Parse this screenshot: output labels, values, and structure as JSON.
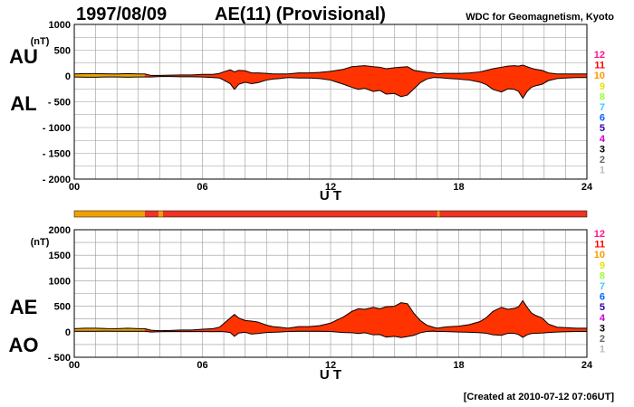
{
  "header": {
    "date": "1997/08/09",
    "title": "AE(11) (Provisional)",
    "source": "WDC for Geomagnetism, Kyoto"
  },
  "footer": {
    "created": "[Created at 2010-07-12 07:06UT]"
  },
  "colors": {
    "fill": "#ff3300",
    "early_fill": "#f0a000",
    "bar_main": "#ee3322",
    "bar_early": "#f0a000",
    "grid": "#999999"
  },
  "station_legend": [
    {
      "label": "12",
      "color": "#ff1493"
    },
    {
      "label": "11",
      "color": "#ff0000"
    },
    {
      "label": "10",
      "color": "#ff9900"
    },
    {
      "label": "9",
      "color": "#e6e600"
    },
    {
      "label": "8",
      "color": "#99ff33"
    },
    {
      "label": "7",
      "color": "#33ccff"
    },
    {
      "label": "6",
      "color": "#0066ff"
    },
    {
      "label": "5",
      "color": "#330099"
    },
    {
      "label": "4",
      "color": "#cc00cc"
    },
    {
      "label": "3",
      "color": "#000000"
    },
    {
      "label": "2",
      "color": "#666666"
    },
    {
      "label": "1",
      "color": "#bbbbbb"
    }
  ],
  "station_bar": {
    "segments": [
      {
        "start": 0,
        "end": 3.3,
        "stations": 10
      },
      {
        "start": 3.3,
        "end": 3.95,
        "stations": 11
      },
      {
        "start": 3.95,
        "end": 4.15,
        "stations": 10
      },
      {
        "start": 4.15,
        "end": 17.0,
        "stations": 11
      },
      {
        "start": 17.0,
        "end": 17.1,
        "stations": 10
      },
      {
        "start": 17.1,
        "end": 24,
        "stations": 11
      }
    ]
  },
  "chart_data": [
    {
      "type": "area",
      "name": "AU/AL",
      "series_labels": [
        "AU",
        "AL"
      ],
      "unit": "(nT)",
      "xlabel": "U T",
      "xlim": [
        0,
        24
      ],
      "ylim": [
        -2000,
        1000
      ],
      "x_ticks": [
        "00",
        "06",
        "12",
        "18",
        "24"
      ],
      "y_ticks": [
        {
          "value": 1000,
          "label": "1000"
        },
        {
          "value": 500,
          "label": "500"
        },
        {
          "value": 0,
          "label": "0"
        },
        {
          "value": -500,
          "label": "- 500"
        },
        {
          "value": -1000,
          "label": "- 1000"
        },
        {
          "value": -1500,
          "label": "- 1500"
        },
        {
          "value": -2000,
          "label": "- 2000"
        }
      ],
      "grid": true,
      "x": [
        0,
        0.5,
        1,
        1.5,
        2,
        2.5,
        3,
        3.3,
        3.6,
        4,
        4.5,
        5,
        5.5,
        6,
        6.5,
        6.8,
        7,
        7.3,
        7.5,
        7.7,
        8,
        8.3,
        8.6,
        9,
        9.3,
        9.6,
        10,
        10.5,
        11,
        11.5,
        12,
        12.3,
        12.6,
        13,
        13.3,
        13.6,
        14,
        14.3,
        14.6,
        15,
        15.3,
        15.6,
        15.9,
        16.2,
        16.5,
        16.8,
        17,
        17.3,
        17.6,
        18,
        18.5,
        19,
        19.3,
        19.6,
        20,
        20.3,
        20.6,
        20.8,
        21,
        21.2,
        21.4,
        21.6,
        21.9,
        22.2,
        22.6,
        23,
        23.5,
        24
      ],
      "series": [
        {
          "name": "AU",
          "values": [
            40,
            45,
            45,
            42,
            40,
            45,
            40,
            40,
            10,
            10,
            15,
            20,
            20,
            30,
            30,
            50,
            80,
            120,
            80,
            110,
            100,
            60,
            60,
            50,
            40,
            40,
            40,
            60,
            60,
            70,
            90,
            110,
            130,
            180,
            190,
            200,
            180,
            170,
            140,
            160,
            170,
            180,
            110,
            90,
            70,
            60,
            40,
            50,
            50,
            50,
            60,
            80,
            110,
            140,
            170,
            190,
            200,
            190,
            210,
            180,
            150,
            130,
            110,
            60,
            40,
            40,
            40,
            40
          ]
        },
        {
          "name": "AL",
          "values": [
            -20,
            -25,
            -25,
            -20,
            -20,
            -25,
            -20,
            -20,
            -20,
            -10,
            -10,
            -15,
            -15,
            -20,
            -30,
            -40,
            -80,
            -150,
            -260,
            -160,
            -120,
            -150,
            -130,
            -80,
            -60,
            -50,
            -30,
            -40,
            -40,
            -50,
            -80,
            -120,
            -160,
            -220,
            -260,
            -240,
            -300,
            -280,
            -350,
            -340,
            -400,
            -370,
            -250,
            -130,
            -60,
            -30,
            -30,
            -40,
            -50,
            -60,
            -80,
            -120,
            -170,
            -260,
            -310,
            -250,
            -260,
            -300,
            -430,
            -300,
            -220,
            -190,
            -160,
            -90,
            -50,
            -40,
            -30,
            -30
          ]
        }
      ]
    },
    {
      "type": "area",
      "name": "AE/AO",
      "series_labels": [
        "AE",
        "AO"
      ],
      "unit": "(nT)",
      "xlabel": "U T",
      "xlim": [
        0,
        24
      ],
      "ylim": [
        -500,
        2000
      ],
      "x_ticks": [
        "00",
        "06",
        "12",
        "18",
        "24"
      ],
      "y_ticks": [
        {
          "value": 2000,
          "label": "2000"
        },
        {
          "value": 1500,
          "label": "1500"
        },
        {
          "value": 1000,
          "label": "1000"
        },
        {
          "value": 500,
          "label": "500"
        },
        {
          "value": 0,
          "label": "0"
        },
        {
          "value": -500,
          "label": "- 500"
        }
      ],
      "grid": true,
      "x": [
        0,
        0.5,
        1,
        1.5,
        2,
        2.5,
        3,
        3.3,
        3.6,
        4,
        4.5,
        5,
        5.5,
        6,
        6.5,
        6.8,
        7,
        7.3,
        7.5,
        7.7,
        8,
        8.3,
        8.6,
        9,
        9.3,
        9.6,
        10,
        10.5,
        11,
        11.5,
        12,
        12.3,
        12.6,
        13,
        13.3,
        13.6,
        14,
        14.3,
        14.6,
        15,
        15.3,
        15.6,
        15.9,
        16.2,
        16.5,
        16.8,
        17,
        17.3,
        17.6,
        18,
        18.5,
        19,
        19.3,
        19.6,
        20,
        20.3,
        20.6,
        20.8,
        21,
        21.2,
        21.4,
        21.6,
        21.9,
        22.2,
        22.6,
        23,
        23.5,
        24
      ],
      "series": [
        {
          "name": "AE",
          "values": [
            60,
            70,
            70,
            62,
            60,
            70,
            60,
            60,
            30,
            20,
            25,
            35,
            35,
            50,
            60,
            90,
            160,
            270,
            340,
            270,
            220,
            210,
            190,
            130,
            100,
            90,
            70,
            100,
            100,
            120,
            170,
            230,
            290,
            400,
            450,
            440,
            480,
            450,
            490,
            500,
            570,
            550,
            360,
            220,
            130,
            90,
            70,
            90,
            100,
            110,
            140,
            200,
            280,
            400,
            480,
            440,
            460,
            490,
            610,
            480,
            370,
            320,
            270,
            150,
            90,
            80,
            70,
            70
          ]
        },
        {
          "name": "AO",
          "values": [
            10,
            10,
            10,
            11,
            10,
            10,
            10,
            10,
            -5,
            0,
            2,
            2,
            2,
            5,
            0,
            5,
            0,
            -15,
            -90,
            -25,
            -10,
            -45,
            -35,
            -15,
            -10,
            -5,
            5,
            10,
            10,
            10,
            5,
            -5,
            -15,
            -20,
            -35,
            -20,
            -60,
            -55,
            -105,
            -90,
            -115,
            -95,
            -70,
            -20,
            5,
            15,
            5,
            5,
            0,
            -5,
            -10,
            -20,
            -30,
            -60,
            -70,
            -30,
            -30,
            -55,
            -110,
            -60,
            -35,
            -30,
            -25,
            -15,
            -5,
            0,
            5,
            5
          ]
        }
      ]
    }
  ]
}
